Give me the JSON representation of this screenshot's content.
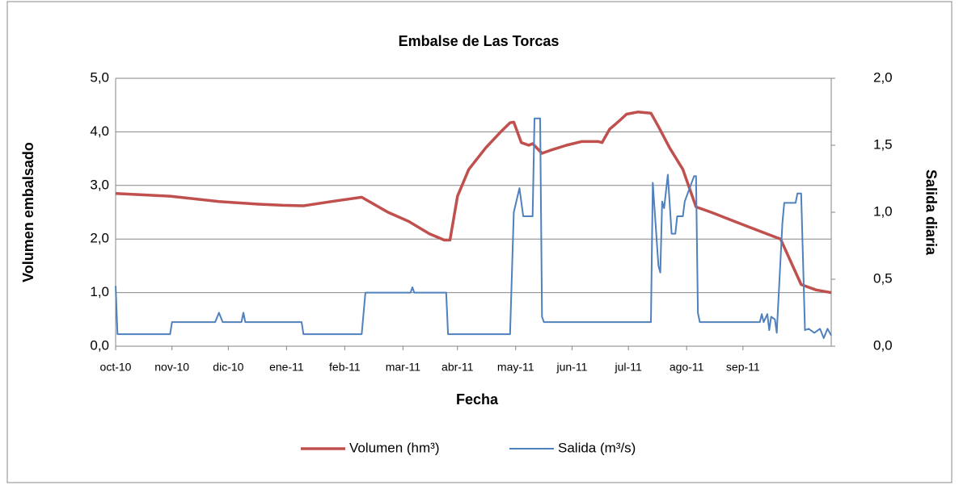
{
  "chart_data": {
    "type": "line",
    "title": "Embalse de Las Torcas",
    "x_label": "Fecha",
    "y_label": "Volumen embalsado",
    "y2_label": "Salida diaria",
    "xlim": [
      0,
      381
    ],
    "xticks": [
      {
        "value": 0,
        "label": "oct-10"
      },
      {
        "value": 30,
        "label": "nov-10"
      },
      {
        "value": 60,
        "label": "dic-10"
      },
      {
        "value": 91,
        "label": "ene-11"
      },
      {
        "value": 122,
        "label": "feb-11"
      },
      {
        "value": 153,
        "label": "mar-11"
      },
      {
        "value": 182,
        "label": "abr-11"
      },
      {
        "value": 213,
        "label": "may-11"
      },
      {
        "value": 243,
        "label": "jun-11"
      },
      {
        "value": 273,
        "label": "jul-11"
      },
      {
        "value": 304,
        "label": "ago-11"
      },
      {
        "value": 334,
        "label": "sep-11"
      }
    ],
    "ylim": [
      0,
      5
    ],
    "yticks": [
      {
        "value": 0,
        "label": "0,0"
      },
      {
        "value": 1,
        "label": "1,0"
      },
      {
        "value": 2,
        "label": "2,0"
      },
      {
        "value": 3,
        "label": "3,0"
      },
      {
        "value": 4,
        "label": "4,0"
      },
      {
        "value": 5,
        "label": "5,0"
      }
    ],
    "y2lim": [
      0,
      2
    ],
    "y2ticks": [
      {
        "value": 0,
        "label": "0,0"
      },
      {
        "value": 0.5,
        "label": "0,5"
      },
      {
        "value": 1,
        "label": "1,0"
      },
      {
        "value": 1.5,
        "label": "1,5"
      },
      {
        "value": 2,
        "label": "2,0"
      }
    ],
    "grid": true,
    "legend": "bottom",
    "series": [
      {
        "name": "Volumen (hm³)",
        "color": "#c0504d",
        "x": [
          0,
          29,
          55,
          76,
          89,
          100,
          115,
          131,
          145,
          156,
          167,
          175,
          178,
          182,
          188,
          197,
          205,
          210,
          212,
          216,
          220,
          222,
          227,
          231,
          240,
          248,
          257,
          259,
          263,
          268,
          272,
          278,
          285,
          289,
          295,
          302,
          309,
          317,
          328,
          339,
          354,
          365,
          373,
          381
        ],
        "values": [
          2.85,
          2.8,
          2.7,
          2.65,
          2.63,
          2.62,
          2.7,
          2.78,
          2.5,
          2.33,
          2.1,
          1.98,
          1.98,
          2.8,
          3.3,
          3.7,
          4.0,
          4.17,
          4.18,
          3.8,
          3.75,
          3.78,
          3.6,
          3.65,
          3.75,
          3.82,
          3.82,
          3.8,
          4.05,
          4.2,
          4.33,
          4.37,
          4.35,
          4.1,
          3.7,
          3.3,
          2.6,
          2.5,
          2.35,
          2.2,
          2.0,
          1.15,
          1.05,
          1.0
        ]
      },
      {
        "name": "Salida (m³/s)",
        "color": "#4f81bd",
        "axis": "y2",
        "x": [
          0,
          1,
          29,
          30,
          53,
          55,
          57,
          67,
          68,
          69,
          99,
          100,
          131,
          133,
          157,
          158,
          159,
          176,
          177,
          210,
          212,
          215,
          217,
          222,
          223,
          226,
          227,
          228,
          285,
          286,
          289,
          290,
          291,
          292,
          294,
          296,
          298,
          299,
          302,
          303,
          308,
          309,
          310,
          311,
          343,
          344,
          345,
          347,
          348,
          349,
          351,
          352,
          355,
          356,
          362,
          363,
          365,
          367,
          369,
          372,
          375,
          377,
          379,
          381
        ],
        "values": [
          0.45,
          0.09,
          0.09,
          0.18,
          0.18,
          0.25,
          0.18,
          0.18,
          0.25,
          0.18,
          0.18,
          0.09,
          0.09,
          0.4,
          0.4,
          0.44,
          0.4,
          0.4,
          0.09,
          0.09,
          1.0,
          1.18,
          0.97,
          0.97,
          1.7,
          1.7,
          0.22,
          0.18,
          0.18,
          1.22,
          0.6,
          0.55,
          1.08,
          1.03,
          1.28,
          0.84,
          0.84,
          0.97,
          0.97,
          1.08,
          1.27,
          1.27,
          0.25,
          0.18,
          0.18,
          0.24,
          0.18,
          0.24,
          0.12,
          0.22,
          0.2,
          0.1,
          0.92,
          1.07,
          1.07,
          1.14,
          1.14,
          0.12,
          0.13,
          0.1,
          0.13,
          0.06,
          0.13,
          0.08
        ]
      }
    ]
  }
}
